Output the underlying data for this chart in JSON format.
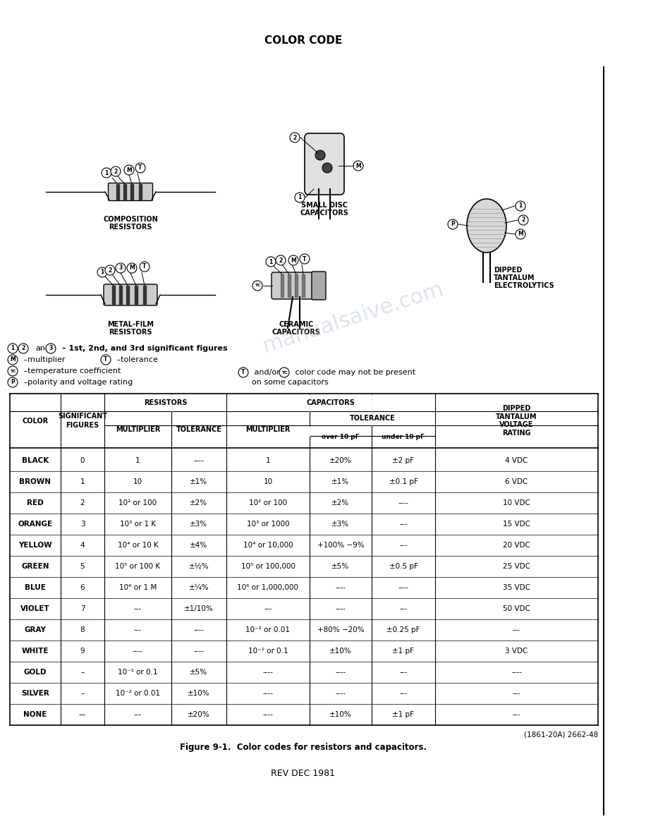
{
  "title": "COLOR CODE",
  "table_data": [
    [
      "BLACK",
      "0",
      "1",
      "----",
      "1",
      "±20%",
      "±2 pF",
      "4 VDC"
    ],
    [
      "BROWN",
      "1",
      "10",
      "±1%",
      "10",
      "±1%",
      "±0.1 pF",
      "6 VDC"
    ],
    [
      "RED",
      "2",
      "10² or 100",
      "±2%",
      "10² or 100",
      "±2%",
      "----",
      "10 VDC"
    ],
    [
      "ORANGE",
      "3",
      "10³ or 1 K",
      "±3%",
      "10³ or 1000",
      "±3%",
      "---",
      "15 VDC"
    ],
    [
      "YELLOW",
      "4",
      "10⁴ or 10 K",
      "±4%",
      "10⁴ or 10,000",
      "+100% −9%",
      "---",
      "20 VDC"
    ],
    [
      "GREEN",
      "5",
      "10⁵ or 100 K",
      "±½%",
      "10⁵ or 100,000",
      "±5%",
      "±0.5 pF",
      "25 VDC"
    ],
    [
      "BLUE",
      "6",
      "10⁶ or 1 M",
      "±¼%",
      "10⁶ or 1,000,000",
      "----",
      "----",
      "35 VDC"
    ],
    [
      "VIOLET",
      "7",
      "---",
      "±1/10%",
      "---",
      "----",
      "---",
      "50 VDC"
    ],
    [
      "GRAY",
      "8",
      "---",
      "----",
      "10⁻² or 0.01",
      "+80% −20%",
      "±0.25 pF",
      "---"
    ],
    [
      "WHITE",
      "9",
      "----",
      "----",
      "10⁻¹ or 0.1",
      "±10%",
      "±1 pF",
      "3 VDC"
    ],
    [
      "GOLD",
      "–",
      "10⁻¹ or 0.1",
      "±5%",
      "----",
      "----",
      "---",
      "----"
    ],
    [
      "SILVER",
      "–",
      "10⁻² or 0.01",
      "±10%",
      "----",
      "----",
      "---",
      "---"
    ],
    [
      "NONE",
      "––",
      "---",
      "±20%",
      "----",
      "±10%",
      "±1 pF",
      "---"
    ]
  ],
  "figure_caption": "Figure 9-1.  Color codes for resistors and capacitors.",
  "rev_text": "REV DEC 1981",
  "part_number": "(1861-20A) 2662-48"
}
